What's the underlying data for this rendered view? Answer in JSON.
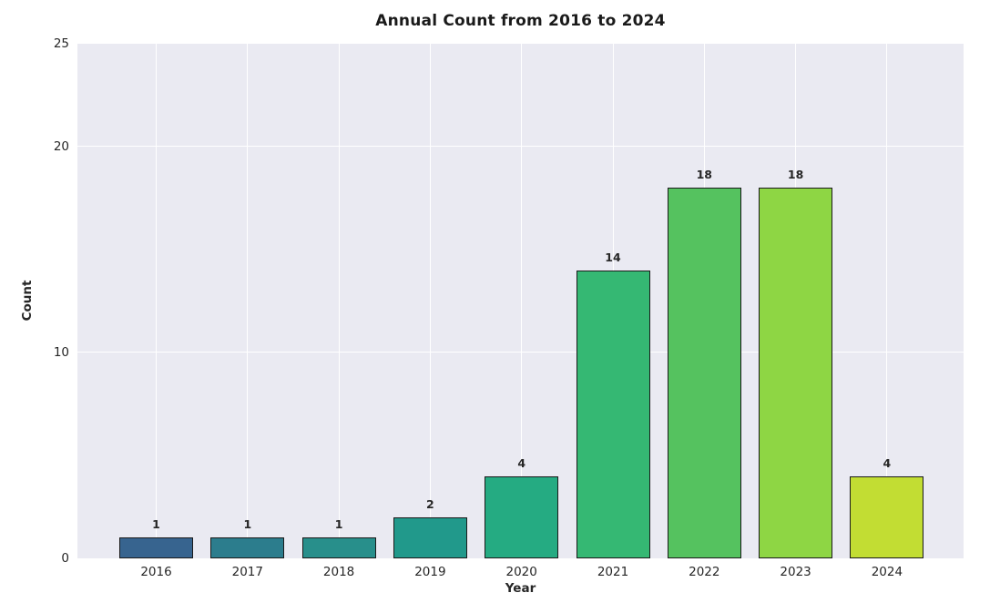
{
  "chart_data": {
    "type": "bar",
    "title": "Annual Count from 2016 to 2024",
    "xlabel": "Year",
    "ylabel": "Count",
    "categories": [
      "2016",
      "2017",
      "2018",
      "2019",
      "2020",
      "2021",
      "2022",
      "2023",
      "2024"
    ],
    "values": [
      1,
      1,
      1,
      2,
      4,
      14,
      18,
      18,
      4
    ],
    "value_labels": [
      "1",
      "1",
      "1",
      "2",
      "4",
      "14",
      "18",
      "18",
      "4"
    ],
    "ylim": [
      0,
      25
    ],
    "yticks": [
      0,
      10,
      20,
      25
    ],
    "grid": true,
    "legend": "none",
    "bar_colors": [
      "#37648f",
      "#2c7d8d",
      "#288f8b",
      "#21998b",
      "#25ab82",
      "#35b873",
      "#55c25f",
      "#8ed644",
      "#c2dd33"
    ],
    "bar_edge_color": "#1a1a1a",
    "plot_background_color": "#eaeaf2",
    "grid_color": "#ffffff",
    "text_color": "#262626",
    "figure_background_color": "#ffffff"
  }
}
